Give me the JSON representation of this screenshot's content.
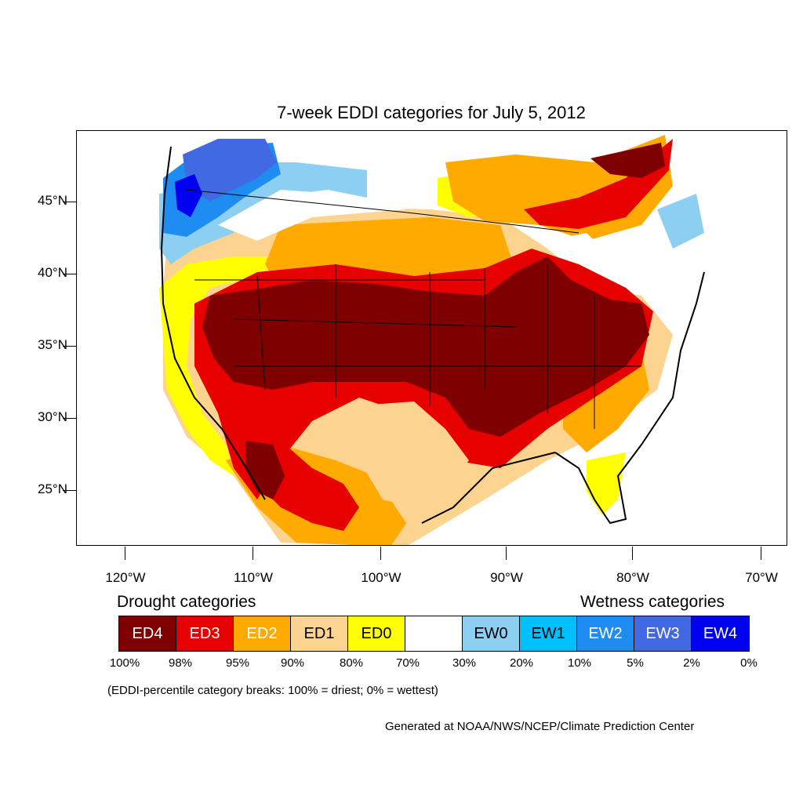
{
  "title": "7-week EDDI categories for July 5, 2012",
  "latitude_labels": [
    "45°N",
    "40°N",
    "35°N",
    "30°N",
    "25°N"
  ],
  "longitude_labels": [
    "120°W",
    "110°W",
    "100°W",
    "90°W",
    "80°W",
    "70°W"
  ],
  "legend": {
    "drought_heading": "Drought categories",
    "wetness_heading": "Wetness categories",
    "categories": [
      {
        "label": "ED4",
        "color": "#7f0000",
        "text_color": "#ffffff"
      },
      {
        "label": "ED3",
        "color": "#e60000",
        "text_color": "#ffffff"
      },
      {
        "label": "ED2",
        "color": "#ffaa00",
        "text_color": "#ffffff"
      },
      {
        "label": "ED1",
        "color": "#fcd38f",
        "text_color": "#000000"
      },
      {
        "label": "ED0",
        "color": "#ffff00",
        "text_color": "#000000"
      },
      {
        "label": "",
        "color": "#ffffff",
        "text_color": "#000000"
      },
      {
        "label": "EW0",
        "color": "#8ccff2",
        "text_color": "#000000"
      },
      {
        "label": "EW1",
        "color": "#00bfff",
        "text_color": "#000000"
      },
      {
        "label": "EW2",
        "color": "#1e8cf0",
        "text_color": "#ffffff"
      },
      {
        "label": "EW3",
        "color": "#4169e1",
        "text_color": "#ffffff"
      },
      {
        "label": "EW4",
        "color": "#0000f0",
        "text_color": "#ffffff"
      }
    ],
    "breaks": [
      "100%",
      "98%",
      "95%",
      "90%",
      "80%",
      "70%",
      "30%",
      "20%",
      "10%",
      "5%",
      "2%",
      "0%"
    ]
  },
  "note": "(EDDI-percentile category breaks: 100% = driest; 0% = wettest)",
  "credit": "Generated at NOAA/NWS/NCEP/Climate Prediction Center"
}
